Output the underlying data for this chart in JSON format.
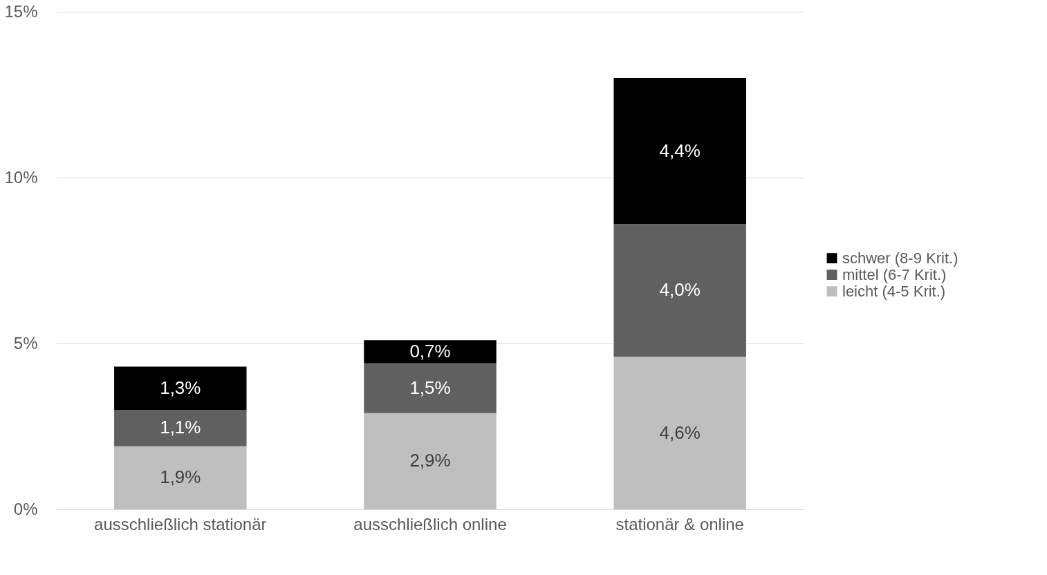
{
  "chart_data": {
    "type": "bar",
    "stacked": true,
    "categories": [
      "ausschließlich stationär",
      "ausschließlich online",
      "stationär & online"
    ],
    "series": [
      {
        "name": "leicht (4-5 Krit.)",
        "color": "#bfbfbf",
        "values": [
          1.9,
          2.9,
          4.6
        ],
        "value_labels": [
          "1,9%",
          "2,9%",
          "4,6%"
        ]
      },
      {
        "name": "mittel (6-7 Krit.)",
        "color": "#606060",
        "values": [
          1.1,
          1.5,
          4.0
        ],
        "value_labels": [
          "1,1%",
          "1,5%",
          "4,0%"
        ]
      },
      {
        "name": "schwer (8-9 Krit.)",
        "color": "#000000",
        "values": [
          1.3,
          0.7,
          4.4
        ],
        "value_labels": [
          "1,3%",
          "0,7%",
          "4,4%"
        ]
      }
    ],
    "ylim": [
      0,
      15
    ],
    "yticks": [
      {
        "value": 0,
        "label": "0%"
      },
      {
        "value": 5,
        "label": "5%"
      },
      {
        "value": 10,
        "label": "10%"
      },
      {
        "value": 15,
        "label": "15%"
      }
    ],
    "grid": "y",
    "legend": "right"
  }
}
